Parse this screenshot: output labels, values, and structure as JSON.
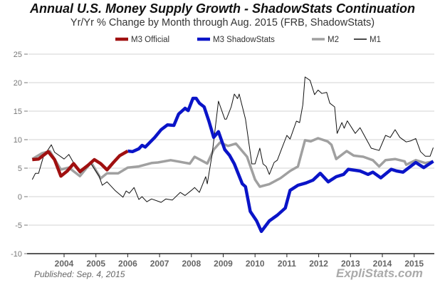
{
  "chart_data": {
    "type": "line",
    "title": "Annual U.S. Money Supply Growth - ShadowStats Continuation",
    "subtitle": "Yr/Yr % Change by Month through Aug. 2015  (FRB, ShadowStats)",
    "xlabel": "",
    "ylabel": "",
    "ylim": [
      -10,
      25
    ],
    "yticks": [
      25,
      20,
      15,
      10,
      5,
      0,
      -5,
      -10
    ],
    "xlim": [
      2002.95,
      2015.65
    ],
    "xticks": [
      "2004",
      "2005",
      "2006",
      "2007",
      "2008",
      "2009",
      "2010",
      "2011",
      "2012",
      "2013",
      "2014",
      "2015"
    ],
    "grid": true,
    "legend_position": "top",
    "series": [
      {
        "name": "M2",
        "color": "#a0a0a0",
        "points": [
          [
            2003.0,
            6.6
          ],
          [
            2003.3,
            7.6
          ],
          [
            2003.55,
            8
          ],
          [
            2003.9,
            4.75
          ],
          [
            2004.15,
            5.1
          ],
          [
            2004.5,
            3.6
          ],
          [
            2004.85,
            6
          ],
          [
            2005.15,
            3.2
          ],
          [
            2005.35,
            4.1
          ],
          [
            2005.7,
            4.1
          ],
          [
            2006.0,
            5.1
          ],
          [
            2006.35,
            5.3
          ],
          [
            2006.75,
            5.9
          ],
          [
            2006.95,
            6
          ],
          [
            2007.35,
            6.4
          ],
          [
            2007.95,
            5.8
          ],
          [
            2008.1,
            7
          ],
          [
            2008.5,
            5.8
          ],
          [
            2008.7,
            8.25
          ],
          [
            2008.9,
            9.5
          ],
          [
            2009.15,
            8.9
          ],
          [
            2009.4,
            9.3
          ],
          [
            2009.75,
            7
          ],
          [
            2010.0,
            3
          ],
          [
            2010.15,
            1.75
          ],
          [
            2010.45,
            2.2
          ],
          [
            2010.8,
            3.25
          ],
          [
            2011.1,
            4.5
          ],
          [
            2011.35,
            5.3
          ],
          [
            2011.57,
            9.9
          ],
          [
            2011.75,
            9.7
          ],
          [
            2011.98,
            10.25
          ],
          [
            2012.28,
            9.7
          ],
          [
            2012.4,
            9.1
          ],
          [
            2012.55,
            6.6
          ],
          [
            2012.88,
            8
          ],
          [
            2013.1,
            7.2
          ],
          [
            2013.4,
            7
          ],
          [
            2013.7,
            6.4
          ],
          [
            2013.9,
            5.3
          ],
          [
            2014.1,
            6.4
          ],
          [
            2014.4,
            6.6
          ],
          [
            2014.7,
            6.2
          ],
          [
            2014.75,
            5.6
          ],
          [
            2015.05,
            6.4
          ],
          [
            2015.35,
            5.9
          ],
          [
            2015.6,
            6.2
          ]
        ]
      },
      {
        "name": "M1",
        "color": "#111111",
        "points": [
          [
            2003.0,
            3
          ],
          [
            2003.1,
            4.1
          ],
          [
            2003.2,
            4.1
          ],
          [
            2003.35,
            7
          ],
          [
            2003.6,
            9.1
          ],
          [
            2003.7,
            7.8
          ],
          [
            2004.0,
            6.6
          ],
          [
            2004.15,
            7.4
          ],
          [
            2004.25,
            6.4
          ],
          [
            2004.5,
            4.1
          ],
          [
            2004.85,
            5.75
          ],
          [
            2005.1,
            3.6
          ],
          [
            2005.2,
            2
          ],
          [
            2005.35,
            2.6
          ],
          [
            2005.6,
            1.1
          ],
          [
            2005.85,
            -0.1
          ],
          [
            2005.95,
            1
          ],
          [
            2006.05,
            0.6
          ],
          [
            2006.2,
            1.6
          ],
          [
            2006.35,
            -0.5
          ],
          [
            2006.45,
            0
          ],
          [
            2006.6,
            -0.9
          ],
          [
            2006.75,
            -0.4
          ],
          [
            2007.05,
            -1
          ],
          [
            2007.2,
            -0.4
          ],
          [
            2007.4,
            -0.6
          ],
          [
            2007.65,
            0.75
          ],
          [
            2007.8,
            0.2
          ],
          [
            2008.0,
            1.1
          ],
          [
            2008.1,
            1.6
          ],
          [
            2008.25,
            0.75
          ],
          [
            2008.45,
            3.5
          ],
          [
            2008.5,
            2.25
          ],
          [
            2008.65,
            7.4
          ],
          [
            2008.85,
            16.75
          ],
          [
            2009.05,
            13.6
          ],
          [
            2009.1,
            13.6
          ],
          [
            2009.25,
            15.75
          ],
          [
            2009.35,
            18
          ],
          [
            2009.45,
            17.2
          ],
          [
            2009.5,
            18
          ],
          [
            2009.7,
            13.6
          ],
          [
            2009.9,
            5.75
          ],
          [
            2010.0,
            5.75
          ],
          [
            2010.15,
            8.5
          ],
          [
            2010.25,
            5.75
          ],
          [
            2010.35,
            5.3
          ],
          [
            2010.45,
            3.9
          ],
          [
            2010.6,
            6
          ],
          [
            2010.7,
            6.4
          ],
          [
            2010.85,
            8.6
          ],
          [
            2011.0,
            10.75
          ],
          [
            2011.1,
            10.1
          ],
          [
            2011.3,
            13.25
          ],
          [
            2011.4,
            13
          ],
          [
            2011.5,
            16.1
          ],
          [
            2011.57,
            21
          ],
          [
            2011.73,
            20.4
          ],
          [
            2011.87,
            17.9
          ],
          [
            2011.98,
            18.7
          ],
          [
            2012.1,
            18.1
          ],
          [
            2012.25,
            18.3
          ],
          [
            2012.35,
            16.4
          ],
          [
            2012.5,
            15.75
          ],
          [
            2012.58,
            11.1
          ],
          [
            2012.73,
            13
          ],
          [
            2012.8,
            12
          ],
          [
            2012.9,
            13.3
          ],
          [
            2013.15,
            11.1
          ],
          [
            2013.3,
            12.1
          ],
          [
            2013.65,
            8.5
          ],
          [
            2013.9,
            8.1
          ],
          [
            2014.1,
            10.75
          ],
          [
            2014.25,
            10.4
          ],
          [
            2014.4,
            11.75
          ],
          [
            2014.55,
            10.4
          ],
          [
            2014.75,
            9.6
          ],
          [
            2014.9,
            9.8
          ],
          [
            2015.05,
            10.2
          ],
          [
            2015.2,
            7.9
          ],
          [
            2015.35,
            7.1
          ],
          [
            2015.5,
            7.1
          ],
          [
            2015.6,
            8.6
          ]
        ]
      },
      {
        "name": "M3 ShadowStats",
        "color": "#0a14c8",
        "points": [
          [
            2006.0,
            8
          ],
          [
            2006.15,
            7.9
          ],
          [
            2006.35,
            8.4
          ],
          [
            2006.45,
            9
          ],
          [
            2006.55,
            8.7
          ],
          [
            2006.85,
            10.4
          ],
          [
            2007.05,
            11.75
          ],
          [
            2007.25,
            12.6
          ],
          [
            2007.45,
            12.5
          ],
          [
            2007.6,
            14.5
          ],
          [
            2007.8,
            15.5
          ],
          [
            2007.9,
            15.1
          ],
          [
            2008.05,
            17.25
          ],
          [
            2008.15,
            17.25
          ],
          [
            2008.25,
            16.4
          ],
          [
            2008.4,
            15.75
          ],
          [
            2008.55,
            13.25
          ],
          [
            2008.7,
            10.4
          ],
          [
            2008.85,
            11.4
          ],
          [
            2009.05,
            8.25
          ],
          [
            2009.2,
            7.25
          ],
          [
            2009.35,
            5.75
          ],
          [
            2009.6,
            2.25
          ],
          [
            2009.7,
            1.75
          ],
          [
            2009.85,
            -2.6
          ],
          [
            2010.05,
            -4.25
          ],
          [
            2010.2,
            -6.1
          ],
          [
            2010.45,
            -4.25
          ],
          [
            2010.7,
            -3.25
          ],
          [
            2010.95,
            -2
          ],
          [
            2011.1,
            1.1
          ],
          [
            2011.35,
            2
          ],
          [
            2011.6,
            2.4
          ],
          [
            2011.82,
            2.9
          ],
          [
            2012.05,
            4.1
          ],
          [
            2012.3,
            2.6
          ],
          [
            2012.55,
            3.5
          ],
          [
            2012.78,
            3.9
          ],
          [
            2012.93,
            4.8
          ],
          [
            2013.3,
            4.5
          ],
          [
            2013.55,
            3.9
          ],
          [
            2013.7,
            4.3
          ],
          [
            2013.95,
            3.3
          ],
          [
            2014.28,
            4.8
          ],
          [
            2014.45,
            4.5
          ],
          [
            2014.65,
            4.3
          ],
          [
            2015.05,
            6
          ],
          [
            2015.3,
            5.1
          ],
          [
            2015.6,
            6.2
          ]
        ]
      },
      {
        "name": "M3 Official",
        "color": "#a01010",
        "points": [
          [
            2003.0,
            6.5
          ],
          [
            2003.2,
            6.6
          ],
          [
            2003.5,
            7.9
          ],
          [
            2003.7,
            6.5
          ],
          [
            2003.9,
            3.6
          ],
          [
            2004.1,
            4.5
          ],
          [
            2004.3,
            5.8
          ],
          [
            2004.5,
            4.4
          ],
          [
            2004.75,
            5.5
          ],
          [
            2004.95,
            6.5
          ],
          [
            2005.15,
            5.8
          ],
          [
            2005.35,
            4.7
          ],
          [
            2005.55,
            6
          ],
          [
            2005.75,
            7.2
          ],
          [
            2006.0,
            8
          ]
        ]
      }
    ],
    "legend": [
      "M3 Official",
      "M3 ShadowStats",
      "M2",
      "M1"
    ]
  },
  "footer": {
    "published": "Published: Sep. 4, 2015",
    "brand": "ExpliStats.com"
  }
}
